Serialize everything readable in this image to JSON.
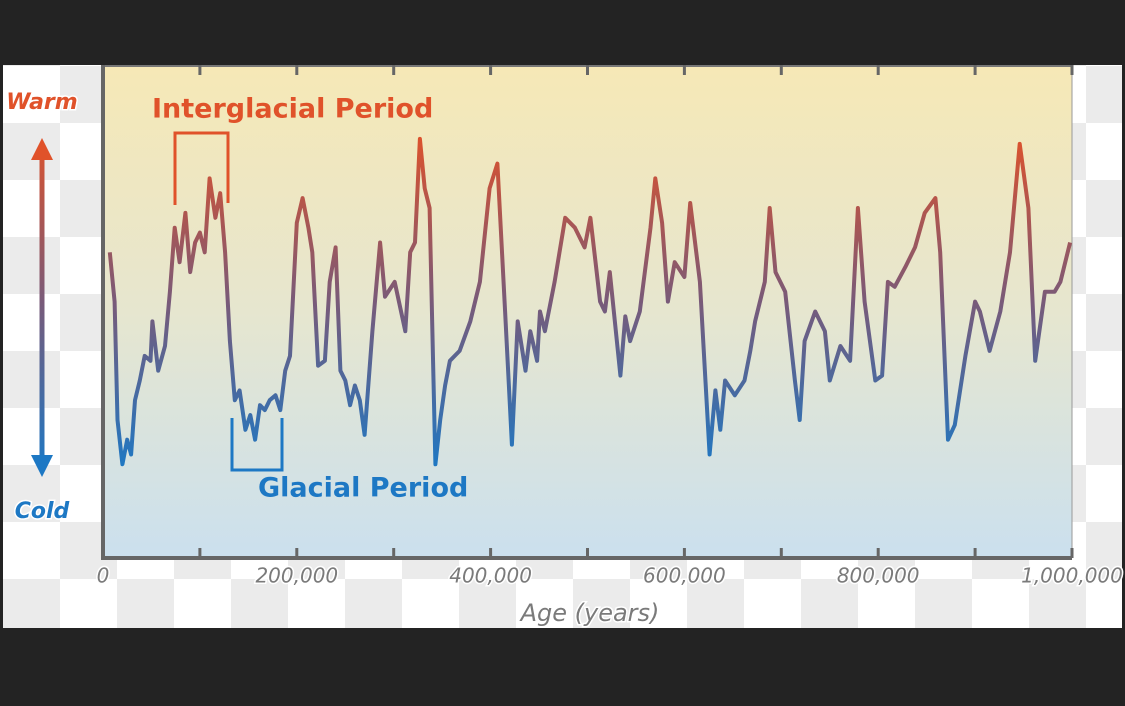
{
  "chart_data": {
    "type": "line",
    "y_top_label": "Warm",
    "y_bottom_label": "Cold",
    "x_label": "Age (years)",
    "annotations": [
      "Interglacial Period",
      "Glacial Period"
    ],
    "xlim": [
      0,
      1000000
    ],
    "xticks": [
      0,
      {
        "value": 200000,
        "label": "200,000"
      },
      {
        "value": 400000,
        "label": "400,000"
      },
      {
        "value": 600000,
        "label": "600,000"
      },
      {
        "value": 800000,
        "label": "800,000"
      },
      {
        "value": 1000000,
        "label": "1,000,000"
      }
    ],
    "xminor": [
      100000,
      300000,
      500000,
      700000,
      900000
    ],
    "ylim": [
      0,
      100
    ],
    "warm_color": "#e0522a",
    "cold_color": "#1d78c4",
    "x": [
      7000,
      12000,
      15000,
      20000,
      25000,
      29000,
      33000,
      38000,
      43000,
      49000,
      51000,
      57000,
      64000,
      69000,
      74000,
      79000,
      85000,
      90000,
      95000,
      100000,
      105000,
      110000,
      116000,
      121000,
      126000,
      131000,
      136000,
      141000,
      147000,
      152000,
      157000,
      162000,
      167000,
      172000,
      178000,
      183000,
      188000,
      193000,
      200000,
      206000,
      212000,
      216000,
      222000,
      229000,
      234000,
      240000,
      245000,
      250000,
      255000,
      260000,
      265000,
      270000,
      278000,
      286000,
      291000,
      301000,
      312000,
      317000,
      322000,
      327000,
      332000,
      337000,
      343000,
      348000,
      353000,
      358000,
      368000,
      379000,
      389000,
      399000,
      407000,
      415000,
      422000,
      428000,
      436000,
      441000,
      448000,
      451000,
      456000,
      466000,
      477000,
      487000,
      497000,
      503000,
      513000,
      518000,
      523000,
      534000,
      539000,
      544000,
      554000,
      565000,
      570000,
      577000,
      583000,
      590000,
      600000,
      606000,
      616000,
      626000,
      632000,
      637000,
      642000,
      652000,
      662000,
      668000,
      673000,
      683000,
      688000,
      694000,
      704000,
      714000,
      719000,
      724000,
      735000,
      745000,
      750000,
      761000,
      771000,
      779000,
      786000,
      797000,
      804000,
      810000,
      817000,
      828000,
      838000,
      848000,
      859000,
      864000,
      872000,
      879000,
      890000,
      900000,
      905000,
      915000,
      926000,
      936000,
      946000,
      955000,
      962000,
      972000,
      982000,
      988000,
      998000
    ],
    "values": [
      62,
      52,
      28,
      19,
      24,
      21,
      32,
      36,
      41,
      40,
      48,
      38,
      43,
      54,
      67,
      60,
      70,
      58,
      64,
      66,
      62,
      77,
      69,
      74,
      62,
      44,
      32,
      34,
      26,
      29,
      24,
      31,
      30,
      32,
      33,
      30,
      38,
      41,
      68,
      73,
      67,
      62,
      39,
      40,
      56,
      63,
      38,
      36,
      31,
      35,
      32,
      25,
      46,
      64,
      53,
      56,
      46,
      62,
      64,
      85,
      75,
      71,
      19,
      28,
      35,
      40,
      42,
      48,
      56,
      75,
      80,
      50,
      23,
      48,
      38,
      46,
      40,
      50,
      46,
      56,
      69,
      67,
      63,
      69,
      52,
      50,
      58,
      37,
      49,
      44,
      50,
      67,
      77,
      68,
      52,
      60,
      57,
      72,
      56,
      21,
      34,
      26,
      36,
      33,
      36,
      42,
      48,
      56,
      71,
      58,
      54,
      36,
      28,
      44,
      50,
      46,
      36,
      43,
      40,
      71,
      52,
      36,
      37,
      56,
      55,
      59,
      63,
      70,
      73,
      62,
      24,
      27,
      41,
      52,
      50,
      42,
      50,
      62,
      84,
      71,
      40,
      54,
      54,
      56,
      64
    ]
  }
}
